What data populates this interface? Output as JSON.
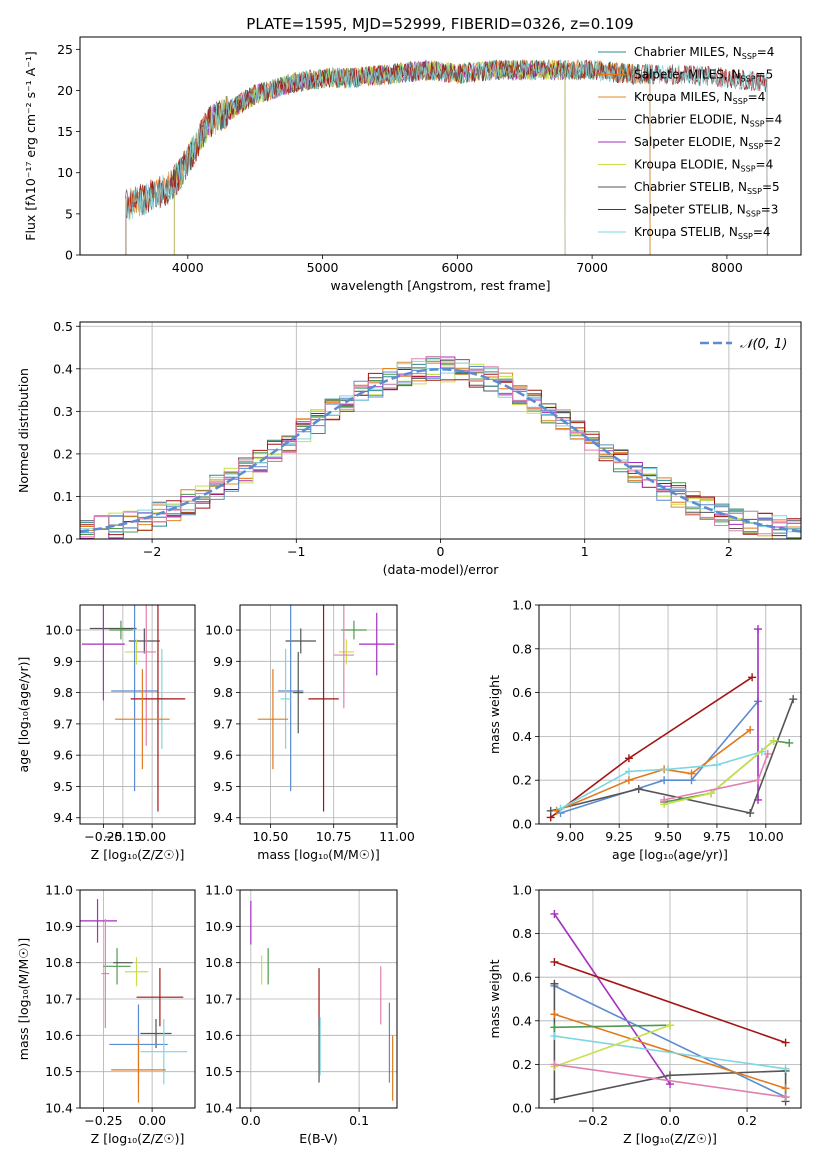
{
  "figure_title": "PLATE=1595, MJD=52999, FIBERID=0326, z=0.109",
  "colors": {
    "Chabrier MILES": "#2e8b8b",
    "Salpeter MILES": "#e07a1f",
    "Kroupa MILES": "#e08a2a",
    "Chabrier ELODIE": "#4f9a4f",
    "Salpeter ELODIE": "#a52fbf",
    "Kroupa ELODIE": "#c9e04a",
    "Chabrier STELIB": "#555555",
    "Salpeter STELIB": "#a31515",
    "Kroupa STELIB": "#7fd6e0",
    "gauss": "#5b8bd0",
    "blue": "#5b8bd0",
    "pink": "#e080b0",
    "orange": "#e07a1f",
    "grid": "#b0b0b0"
  },
  "chart_data": [
    {
      "id": "spectrum",
      "type": "line",
      "xlabel": "wavelength [Angstrom, rest frame]",
      "ylabel": "Flux [fλ10⁻¹⁷ erg cm⁻² s⁻¹ A⁻¹]",
      "xlim": [
        3200,
        8550
      ],
      "ylim": [
        0,
        26.5
      ],
      "xticks": [
        4000,
        5000,
        6000,
        7000,
        8000
      ],
      "yticks": [
        0,
        5,
        10,
        15,
        20,
        25
      ],
      "grid": false,
      "legend_position": "right",
      "legend": [
        {
          "label": "Chabrier MILES, N",
          "sub": "SSP",
          "tail": "=4",
          "color_key": "Chabrier MILES"
        },
        {
          "label": "Salpeter MILES, N",
          "sub": "SSP",
          "tail": "=5",
          "color_key": "Salpeter MILES"
        },
        {
          "label": "Kroupa MILES, N",
          "sub": "SSP",
          "tail": "=4",
          "color_key": "Kroupa MILES"
        },
        {
          "label": "Chabrier ELODIE, N",
          "sub": "SSP",
          "tail": "=4",
          "color_key": "Chabrier ELODIE"
        },
        {
          "label": "Salpeter ELODIE, N",
          "sub": "SSP",
          "tail": "=2",
          "color_key": "Salpeter ELODIE"
        },
        {
          "label": "Kroupa ELODIE, N",
          "sub": "SSP",
          "tail": "=4",
          "color_key": "Kroupa ELODIE"
        },
        {
          "label": "Chabrier STELIB, N",
          "sub": "SSP",
          "tail": "=5",
          "color_key": "Chabrier STELIB"
        },
        {
          "label": "Salpeter STELIB, N",
          "sub": "SSP",
          "tail": "=3",
          "color_key": "Salpeter STELIB"
        },
        {
          "label": "Kroupa STELIB, N",
          "sub": "SSP",
          "tail": "=4",
          "color_key": "Kroupa STELIB"
        }
      ],
      "envelope": {
        "x": [
          3540,
          3700,
          3850,
          3950,
          4050,
          4150,
          4300,
          4500,
          4800,
          5000,
          5200,
          5500,
          5800,
          6000,
          6300,
          6600,
          7000,
          7300,
          7600,
          8000,
          8300
        ],
        "y": [
          6,
          7,
          8,
          10,
          13,
          16,
          17.5,
          19.5,
          21,
          21.5,
          21.5,
          22,
          22.5,
          22,
          22.5,
          22.5,
          22.5,
          22,
          22,
          21.5,
          21
        ]
      },
      "series_ranges": [
        {
          "name": "Chabrier MILES",
          "x": [
            3540,
            7430
          ]
        },
        {
          "name": "Salpeter MILES",
          "x": [
            3540,
            7430
          ]
        },
        {
          "name": "Kroupa MILES",
          "x": [
            3540,
            7430
          ]
        },
        {
          "name": "Chabrier ELODIE",
          "x": [
            3900,
            6800
          ]
        },
        {
          "name": "Salpeter ELODIE",
          "x": [
            3900,
            6800
          ]
        },
        {
          "name": "Kroupa ELODIE",
          "x": [
            3900,
            6800
          ]
        },
        {
          "name": "Chabrier STELIB",
          "x": [
            3540,
            8300
          ]
        },
        {
          "name": "Salpeter STELIB",
          "x": [
            3540,
            8300
          ]
        },
        {
          "name": "Kroupa STELIB",
          "x": [
            3540,
            8300
          ]
        }
      ]
    },
    {
      "id": "residuals",
      "type": "line",
      "xlabel": "(data-model)/error",
      "ylabel": "Normed distribution",
      "xlim": [
        -2.5,
        2.5
      ],
      "ylim": [
        0,
        0.51
      ],
      "xticks": [
        -2,
        -1,
        0,
        1,
        2
      ],
      "xticklabels": [
        "−2",
        "−1",
        "0",
        "1",
        "2"
      ],
      "yticks": [
        0,
        0.1,
        0.2,
        0.3,
        0.4,
        0.5
      ],
      "yticklabels": [
        "0.0",
        "0.1",
        "0.2",
        "0.3",
        "0.4",
        "0.5"
      ],
      "grid": true,
      "legend_position": "top-right",
      "legend_label": "𝒩(0, 1)",
      "bin_width": 0.1
    },
    {
      "id": "age_vs_Z",
      "type": "scatter",
      "xlabel": "Z [log₁₀(Z/Z☉)]",
      "ylabel": "age  [log₁₀(age/yr)]",
      "xlim": [
        -0.37,
        0.22
      ],
      "ylim": [
        9.38,
        10.08
      ],
      "xticks": [
        -0.25,
        -0.15,
        0.0
      ],
      "xticklabels": [
        "−0.25",
        "−0.15",
        "0.00"
      ],
      "yticks": [
        9.4,
        9.5,
        9.6,
        9.7,
        9.8,
        9.9,
        10.0
      ],
      "yticklabels": [
        "9.4",
        "9.5",
        "9.6",
        "9.7",
        "9.8",
        "9.9",
        "10.0"
      ],
      "grid": true,
      "points": [
        {
          "c": "Chabrier STELIB",
          "x": -0.2,
          "xe": 0.12,
          "y": 10.005,
          "ye": 0
        },
        {
          "c": "Chabrier ELODIE",
          "x": -0.16,
          "xe": 0.06,
          "y": 10.0,
          "ye": 0.03
        },
        {
          "c": "Chabrier STELIB",
          "x": -0.04,
          "xe": 0.08,
          "y": 9.965,
          "ye": 0.04
        },
        {
          "c": "Salpeter ELODIE",
          "x": -0.25,
          "xe": 0.11,
          "y": 9.955,
          "ye": 0.18
        },
        {
          "c": "Kroupa ELODIE",
          "x": -0.08,
          "xe": 0.06,
          "y": 9.93,
          "ye": 0.04
        },
        {
          "c": "pink",
          "x": -0.03,
          "xe": 0.05,
          "y": 9.93,
          "ye": 0.3
        },
        {
          "c": "Kroupa STELIB",
          "x": 0.05,
          "xe": 0.02,
          "y": 9.78,
          "ye": 0.16
        },
        {
          "c": "blue",
          "x": -0.09,
          "xe": 0.12,
          "y": 9.805,
          "ye": 0.32
        },
        {
          "c": "Salpeter STELIB",
          "x": 0.03,
          "xe": 0.14,
          "y": 9.78,
          "ye": 0.36
        },
        {
          "c": "orange",
          "x": -0.05,
          "xe": 0.14,
          "y": 9.715,
          "ye": 0.16
        }
      ]
    },
    {
      "id": "age_vs_mass",
      "type": "scatter",
      "xlabel": "mass [log₁₀(M/M☉)]",
      "ylabel": "",
      "xlim": [
        10.38,
        11.0
      ],
      "ylim": [
        9.38,
        10.08
      ],
      "xticks": [
        10.5,
        10.75,
        11.0
      ],
      "xticklabels": [
        "10.50",
        "10.75",
        "11.00"
      ],
      "yticks": [
        9.4,
        9.5,
        9.6,
        9.7,
        9.8,
        9.9,
        10.0
      ],
      "yticklabels": [
        "9.4",
        "9.5",
        "9.6",
        "9.7",
        "9.8",
        "9.9",
        "10.0"
      ],
      "grid": true,
      "points": [
        {
          "c": "Chabrier STELIB",
          "x": 10.62,
          "xe": 0.06,
          "y": 9.965,
          "ye": 0.04
        },
        {
          "c": "Chabrier ELODIE",
          "x": 10.83,
          "xe": 0.05,
          "y": 10.0,
          "ye": 0.03
        },
        {
          "c": "Salpeter ELODIE",
          "x": 10.92,
          "xe": 0.07,
          "y": 9.955,
          "ye": 0.1
        },
        {
          "c": "Kroupa ELODIE",
          "x": 10.8,
          "xe": 0.03,
          "y": 9.93,
          "ye": 0.04
        },
        {
          "c": "pink",
          "x": 10.79,
          "xe": 0.04,
          "y": 9.92,
          "ye": 0.17
        },
        {
          "c": "blue",
          "x": 10.58,
          "xe": 0.05,
          "y": 9.805,
          "ye": 0.32
        },
        {
          "c": "Kroupa STELIB",
          "x": 10.56,
          "xe": 0.02,
          "y": 9.78,
          "ye": 0.16
        },
        {
          "c": "Salpeter STELIB",
          "x": 10.71,
          "xe": 0.06,
          "y": 9.78,
          "ye": 0.36
        },
        {
          "c": "orange",
          "x": 10.51,
          "xe": 0.06,
          "y": 9.715,
          "ye": 0.16
        },
        {
          "c": "Chabrier STELIB",
          "x": 10.61,
          "xe": 0.02,
          "y": 9.8,
          "ye": 0.13
        }
      ]
    },
    {
      "id": "weight_vs_age",
      "type": "line",
      "xlabel": "age  [log₁₀(age/yr)]",
      "ylabel": "mass weight",
      "xlim": [
        8.84,
        10.18
      ],
      "ylim": [
        0,
        1.0
      ],
      "xticks": [
        9.0,
        9.25,
        9.5,
        9.75,
        10.0
      ],
      "xticklabels": [
        "9.00",
        "9.25",
        "9.50",
        "9.75",
        "10.00"
      ],
      "yticks": [
        0,
        0.2,
        0.4,
        0.6,
        0.8,
        1.0
      ],
      "yticklabels": [
        "0.0",
        "0.2",
        "0.4",
        "0.6",
        "0.8",
        "1.0"
      ],
      "grid": true,
      "series": [
        {
          "name": "Salpeter STELIB",
          "x": [
            8.9,
            9.3,
            9.93
          ],
          "y": [
            0.03,
            0.3,
            0.67
          ]
        },
        {
          "name": "blue",
          "x": [
            8.95,
            9.48,
            9.62,
            9.96
          ],
          "y": [
            0.05,
            0.2,
            0.2,
            0.56
          ]
        },
        {
          "name": "Salpeter ELODIE",
          "x": [
            9.96,
            9.96
          ],
          "y": [
            0.11,
            0.89
          ]
        },
        {
          "name": "Chabrier STELIB",
          "x": [
            8.9,
            9.35,
            9.92,
            10.14
          ],
          "y": [
            0.06,
            0.16,
            0.05,
            0.57
          ]
        },
        {
          "name": "orange",
          "x": [
            8.93,
            9.3,
            9.48,
            9.62,
            9.92
          ],
          "y": [
            0.06,
            0.2,
            0.25,
            0.23,
            0.43
          ]
        },
        {
          "name": "Kroupa STELIB",
          "x": [
            8.95,
            9.3,
            9.5,
            9.75,
            9.98
          ],
          "y": [
            0.07,
            0.24,
            0.25,
            0.27,
            0.33
          ]
        },
        {
          "name": "Chabrier ELODIE",
          "x": [
            9.48,
            9.72,
            10.04,
            10.12
          ],
          "y": [
            0.1,
            0.14,
            0.38,
            0.37
          ]
        },
        {
          "name": "Kroupa ELODIE",
          "x": [
            9.48,
            9.72,
            10.04
          ],
          "y": [
            0.09,
            0.14,
            0.38
          ]
        },
        {
          "name": "pink",
          "x": [
            9.48,
            9.96,
            10.01
          ],
          "y": [
            0.11,
            0.2,
            0.32
          ]
        }
      ]
    },
    {
      "id": "mass_vs_Z",
      "type": "scatter",
      "xlabel": "Z [log₁₀(Z/Z☉)]",
      "ylabel": "mass [log₁₀(M/M☉)]",
      "xlim": [
        -0.37,
        0.22
      ],
      "ylim": [
        10.4,
        11.0
      ],
      "xticks": [
        -0.25,
        0.0
      ],
      "xticklabels": [
        "−0.25",
        "0.00"
      ],
      "yticks": [
        10.4,
        10.5,
        10.6,
        10.7,
        10.8,
        10.9,
        11.0
      ],
      "yticklabels": [
        "10.4",
        "10.5",
        "10.6",
        "10.7",
        "10.8",
        "10.9",
        "11.0"
      ],
      "grid": true,
      "points": [
        {
          "c": "Salpeter ELODIE",
          "x": -0.28,
          "xe": 0.1,
          "y": 10.915,
          "ye": 0.06
        },
        {
          "c": "Chabrier ELODIE",
          "x": -0.18,
          "xe": 0.07,
          "y": 10.79,
          "ye": 0.05
        },
        {
          "c": "Chabrier STELIB",
          "x": -0.15,
          "xe": 0.05,
          "y": 10.8,
          "ye": 0.0
        },
        {
          "c": "Kroupa ELODIE",
          "x": -0.08,
          "xe": 0.06,
          "y": 10.775,
          "ye": 0.04
        },
        {
          "c": "pink",
          "x": -0.24,
          "xe": 0.02,
          "y": 10.77,
          "ye": 0.15
        },
        {
          "c": "Salpeter STELIB",
          "x": 0.04,
          "xe": 0.12,
          "y": 10.705,
          "ye": 0.08
        },
        {
          "c": "Chabrier STELIB",
          "x": 0.02,
          "xe": 0.08,
          "y": 10.605,
          "ye": 0.04
        },
        {
          "c": "blue",
          "x": -0.07,
          "xe": 0.15,
          "y": 10.575,
          "ye": 0.11
        },
        {
          "c": "Kroupa STELIB",
          "x": 0.06,
          "xe": 0.12,
          "y": 10.555,
          "ye": 0.09
        },
        {
          "c": "orange",
          "x": -0.07,
          "xe": 0.14,
          "y": 10.505,
          "ye": 0.09
        }
      ]
    },
    {
      "id": "mass_vs_ebv",
      "type": "scatter",
      "xlabel": "E(B-V)",
      "ylabel": "",
      "xlim": [
        -0.01,
        0.135
      ],
      "ylim": [
        10.4,
        11.0
      ],
      "xticks": [
        0.0,
        0.1
      ],
      "xticklabels": [
        "0.0",
        "0.1"
      ],
      "yticks": [
        10.4,
        10.5,
        10.6,
        10.7,
        10.8,
        10.9,
        11.0
      ],
      "yticklabels": [
        "10.4",
        "10.5",
        "10.6",
        "10.7",
        "10.8",
        "10.9",
        "11.0"
      ],
      "grid": true,
      "points": [
        {
          "c": "Salpeter ELODIE",
          "x": 0.0,
          "y": 10.91,
          "ye": 0.06
        },
        {
          "c": "Kroupa ELODIE",
          "x": 0.01,
          "y": 10.78,
          "ye": 0.04
        },
        {
          "c": "Chabrier ELODIE",
          "x": 0.016,
          "y": 10.79,
          "ye": 0.05
        },
        {
          "c": "Salpeter STELIB",
          "x": 0.063,
          "y": 10.705,
          "ye": 0.08
        },
        {
          "c": "Chabrier STELIB",
          "x": 0.063,
          "y": 10.56,
          "ye": 0.09
        },
        {
          "c": "Kroupa STELIB",
          "x": 0.064,
          "y": 10.57,
          "ye": 0.08
        },
        {
          "c": "pink",
          "x": 0.12,
          "y": 10.71,
          "ye": 0.08
        },
        {
          "c": "blue",
          "x": 0.128,
          "y": 10.58,
          "ye": 0.11
        },
        {
          "c": "orange",
          "x": 0.131,
          "y": 10.51,
          "ye": 0.09
        }
      ]
    },
    {
      "id": "weight_vs_Z",
      "type": "line",
      "xlabel": "Z [log₁₀(Z/Z☉)]",
      "ylabel": "mass weight",
      "xlim": [
        -0.34,
        0.34
      ],
      "ylim": [
        0,
        1.0
      ],
      "xticks": [
        -0.2,
        0.0,
        0.2
      ],
      "xticklabels": [
        "−0.2",
        "0.0",
        "0.2"
      ],
      "yticks": [
        0,
        0.2,
        0.4,
        0.6,
        0.8,
        1.0
      ],
      "yticklabels": [
        "0.0",
        "0.2",
        "0.4",
        "0.6",
        "0.8",
        "1.0"
      ],
      "grid": true,
      "series": [
        {
          "name": "Salpeter ELODIE",
          "x": [
            -0.3,
            0.0
          ],
          "y": [
            0.89,
            0.11
          ]
        },
        {
          "name": "Salpeter STELIB",
          "x": [
            -0.3,
            0.3
          ],
          "y": [
            0.67,
            0.3
          ]
        },
        {
          "name": "blue",
          "x": [
            -0.3,
            0.3
          ],
          "y": [
            0.56,
            0.05
          ]
        },
        {
          "name": "Chabrier STELIB",
          "x": [
            -0.3,
            -0.3,
            0.0,
            0.3,
            0.3
          ],
          "y": [
            0.57,
            0.04,
            0.15,
            0.17,
            0.03
          ]
        },
        {
          "name": "orange",
          "x": [
            -0.3,
            0.3
          ],
          "y": [
            0.43,
            0.09
          ]
        },
        {
          "name": "Chabrier ELODIE",
          "x": [
            -0.3,
            0.0
          ],
          "y": [
            0.37,
            0.38
          ]
        },
        {
          "name": "Kroupa STELIB",
          "x": [
            -0.3,
            0.3
          ],
          "y": [
            0.33,
            0.18
          ]
        },
        {
          "name": "Kroupa ELODIE",
          "x": [
            -0.3,
            0.0
          ],
          "y": [
            0.19,
            0.38
          ]
        },
        {
          "name": "pink",
          "x": [
            -0.3,
            0.3
          ],
          "y": [
            0.2,
            0.05
          ]
        }
      ]
    }
  ]
}
